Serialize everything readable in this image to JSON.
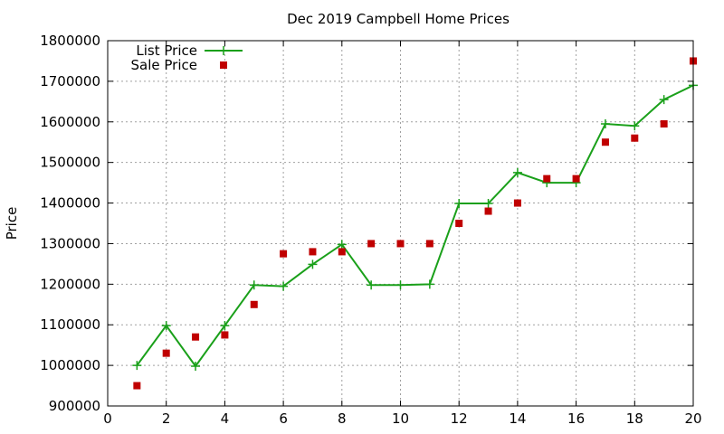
{
  "chart_data": {
    "type": "line",
    "title": "Dec 2019 Campbell Home Prices",
    "xlabel": "",
    "ylabel": "Price",
    "xlim": [
      0,
      20
    ],
    "ylim": [
      900000,
      1800000
    ],
    "x_ticks": [
      0,
      2,
      4,
      6,
      8,
      10,
      12,
      14,
      16,
      18,
      20
    ],
    "y_ticks": [
      900000,
      1000000,
      1100000,
      1200000,
      1300000,
      1400000,
      1500000,
      1600000,
      1700000,
      1800000
    ],
    "grid": true,
    "legend_position": "top-left",
    "series": [
      {
        "name": "List Price",
        "style": "line+cross",
        "color": "#1aa01a",
        "x": [
          1,
          2,
          3,
          4,
          5,
          6,
          7,
          8,
          9,
          10,
          11,
          12,
          13,
          14,
          15,
          16,
          17,
          18,
          19,
          20
        ],
        "values": [
          1000000,
          1098000,
          998000,
          1098000,
          1198000,
          1195000,
          1249000,
          1298000,
          1198000,
          1198000,
          1200000,
          1399000,
          1399000,
          1475000,
          1450000,
          1450000,
          1595000,
          1590000,
          1655000,
          1690000
        ]
      },
      {
        "name": "Sale Price",
        "style": "square",
        "color": "#c00000",
        "x": [
          1,
          2,
          3,
          4,
          5,
          6,
          7,
          8,
          9,
          10,
          11,
          12,
          13,
          14,
          15,
          16,
          17,
          18,
          19,
          20
        ],
        "values": [
          950000,
          1030000,
          1070000,
          1075000,
          1150000,
          1275000,
          1280000,
          1280000,
          1300000,
          1300000,
          1300000,
          1350000,
          1380000,
          1400000,
          1460000,
          1460000,
          1550000,
          1560000,
          1595000,
          1750000
        ]
      }
    ]
  }
}
